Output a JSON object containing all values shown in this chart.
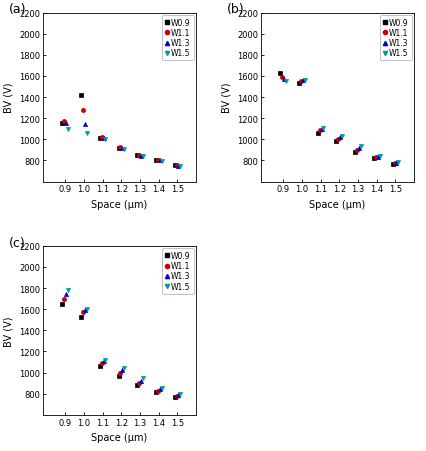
{
  "spaces": [
    0.9,
    1.0,
    1.1,
    1.2,
    1.3,
    1.4,
    1.5
  ],
  "panel_a": {
    "label": "(a)",
    "ylim": [
      600,
      2200
    ],
    "yticks": [
      800,
      1000,
      1200,
      1400,
      1600,
      1800,
      2000,
      2200
    ],
    "W0.9": [
      1150,
      1415,
      1010,
      920,
      850,
      800,
      755
    ],
    "W1.1": [
      1175,
      1280,
      1020,
      930,
      855,
      808,
      760
    ],
    "W1.3": [
      1155,
      1145,
      1010,
      915,
      845,
      800,
      750
    ],
    "W1.5": [
      1100,
      1060,
      1000,
      910,
      840,
      795,
      745
    ]
  },
  "panel_b": {
    "label": "(b)",
    "ylim": [
      600,
      2200
    ],
    "yticks": [
      800,
      1000,
      1200,
      1400,
      1600,
      1800,
      2000,
      2200
    ],
    "W0.9": [
      1630,
      1535,
      1060,
      980,
      880,
      820,
      770
    ],
    "W1.1": [
      1590,
      1555,
      1085,
      1000,
      900,
      830,
      775
    ],
    "W1.3": [
      1570,
      1565,
      1100,
      1020,
      920,
      835,
      780
    ],
    "W1.5": [
      1550,
      1560,
      1110,
      1035,
      940,
      845,
      785
    ]
  },
  "panel_c": {
    "label": "(c)",
    "ylim": [
      600,
      2200
    ],
    "yticks": [
      800,
      1000,
      1200,
      1400,
      1600,
      1800,
      2000,
      2200
    ],
    "W0.9": [
      1650,
      1530,
      1060,
      970,
      880,
      820,
      770
    ],
    "W1.1": [
      1700,
      1570,
      1090,
      1000,
      905,
      830,
      780
    ],
    "W1.3": [
      1740,
      1590,
      1105,
      1020,
      925,
      845,
      790
    ],
    "W1.5": [
      1780,
      1600,
      1120,
      1045,
      950,
      855,
      795
    ]
  },
  "colors": {
    "W0.9": "#000000",
    "W1.1": "#cc0000",
    "W1.3": "#0000cc",
    "W1.5": "#009999"
  },
  "markers": {
    "W0.9": "s",
    "W1.1": "o",
    "W1.3": "^",
    "W1.5": "v"
  },
  "legend_labels": [
    "W0.9",
    "W1.1",
    "W1.3",
    "W1.5"
  ],
  "xlabel": "Space (μm)",
  "ylabel": "BV (V)",
  "x_offsets": {
    "W0.9": -0.015,
    "W1.1": -0.005,
    "W1.3": 0.005,
    "W1.5": 0.015
  },
  "markersize": 3.0,
  "tick_fontsize": 6.0,
  "label_fontsize": 7.0,
  "legend_fontsize": 5.5
}
